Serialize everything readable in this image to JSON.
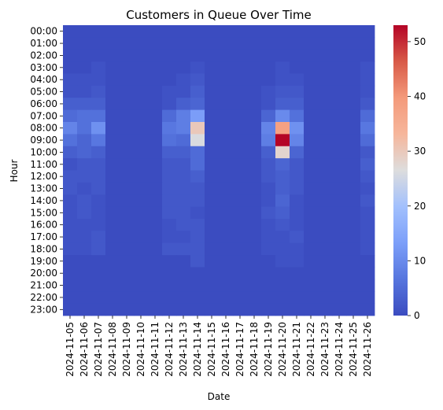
{
  "chart_data": {
    "type": "heatmap",
    "title": "Customers in Queue Over Time",
    "xlabel": "Date",
    "ylabel": "Hour",
    "x_categories": [
      "2024-11-05",
      "2024-11-06",
      "2024-11-07",
      "2024-11-08",
      "2024-11-09",
      "2024-11-10",
      "2024-11-11",
      "2024-11-12",
      "2024-11-13",
      "2024-11-14",
      "2024-11-15",
      "2024-11-16",
      "2024-11-17",
      "2024-11-18",
      "2024-11-19",
      "2024-11-20",
      "2024-11-21",
      "2024-11-22",
      "2024-11-23",
      "2024-11-24",
      "2024-11-25",
      "2024-11-26"
    ],
    "y_categories": [
      "00:00",
      "01:00",
      "02:00",
      "03:00",
      "04:00",
      "05:00",
      "06:00",
      "07:00",
      "08:00",
      "09:00",
      "10:00",
      "11:00",
      "12:00",
      "13:00",
      "14:00",
      "15:00",
      "16:00",
      "17:00",
      "18:00",
      "19:00",
      "20:00",
      "21:00",
      "22:00",
      "23:00"
    ],
    "values": [
      [
        0,
        0,
        0,
        0,
        0,
        0,
        0,
        0,
        0,
        0,
        0,
        0,
        0,
        0,
        0,
        0,
        0,
        0,
        0,
        0,
        0,
        0
      ],
      [
        0,
        0,
        0,
        0,
        0,
        0,
        0,
        0,
        0,
        0,
        0,
        0,
        0,
        0,
        0,
        0,
        0,
        0,
        0,
        0,
        0,
        0
      ],
      [
        0,
        0,
        0,
        0,
        0,
        0,
        0,
        0,
        0,
        0,
        0,
        0,
        0,
        0,
        0,
        0,
        0,
        0,
        0,
        0,
        0,
        0
      ],
      [
        0,
        0,
        1,
        0,
        0,
        0,
        0,
        0,
        0,
        1,
        0,
        0,
        0,
        0,
        0,
        1,
        0,
        0,
        0,
        0,
        0,
        1
      ],
      [
        1,
        1,
        1,
        0,
        0,
        0,
        0,
        0,
        1,
        2,
        0,
        0,
        0,
        0,
        0,
        1,
        1,
        0,
        0,
        0,
        0,
        1
      ],
      [
        1,
        1,
        2,
        0,
        0,
        0,
        0,
        1,
        1,
        3,
        0,
        0,
        0,
        0,
        1,
        2,
        2,
        0,
        0,
        0,
        0,
        1
      ],
      [
        3,
        3,
        3,
        0,
        0,
        0,
        0,
        1,
        3,
        4,
        0,
        0,
        0,
        0,
        1,
        3,
        3,
        0,
        0,
        0,
        0,
        2
      ],
      [
        5,
        6,
        6,
        0,
        0,
        0,
        0,
        5,
        8,
        13,
        0,
        0,
        0,
        0,
        4,
        10,
        6,
        0,
        0,
        0,
        0,
        5
      ],
      [
        9,
        6,
        11,
        0,
        0,
        0,
        0,
        7,
        8,
        30,
        0,
        0,
        0,
        0,
        9,
        38,
        11,
        0,
        0,
        0,
        0,
        7
      ],
      [
        6,
        4,
        7,
        0,
        0,
        0,
        0,
        6,
        5,
        26,
        0,
        0,
        0,
        0,
        8,
        53,
        9,
        0,
        0,
        0,
        0,
        5
      ],
      [
        3,
        4,
        3,
        0,
        0,
        0,
        0,
        3,
        3,
        5,
        0,
        0,
        0,
        0,
        3,
        28,
        4,
        0,
        0,
        0,
        0,
        2
      ],
      [
        1,
        2,
        2,
        0,
        0,
        0,
        0,
        2,
        2,
        5,
        0,
        0,
        0,
        0,
        2,
        4,
        2,
        0,
        0,
        0,
        0,
        3
      ],
      [
        2,
        2,
        2,
        0,
        0,
        0,
        0,
        2,
        2,
        3,
        0,
        0,
        0,
        0,
        2,
        3,
        2,
        0,
        0,
        0,
        0,
        2
      ],
      [
        2,
        1,
        2,
        0,
        0,
        0,
        0,
        2,
        2,
        2,
        0,
        0,
        0,
        0,
        1,
        3,
        2,
        0,
        0,
        0,
        0,
        1
      ],
      [
        1,
        2,
        1,
        0,
        0,
        0,
        0,
        2,
        2,
        2,
        0,
        0,
        0,
        0,
        1,
        4,
        1,
        0,
        0,
        0,
        0,
        2
      ],
      [
        1,
        2,
        1,
        0,
        0,
        0,
        0,
        2,
        2,
        1,
        0,
        0,
        0,
        0,
        2,
        3,
        1,
        0,
        0,
        0,
        0,
        1
      ],
      [
        1,
        1,
        1,
        0,
        0,
        0,
        0,
        1,
        2,
        2,
        0,
        0,
        0,
        0,
        1,
        2,
        1,
        0,
        0,
        0,
        0,
        1
      ],
      [
        1,
        1,
        2,
        0,
        0,
        0,
        0,
        1,
        1,
        2,
        0,
        0,
        0,
        0,
        1,
        1,
        2,
        0,
        0,
        0,
        0,
        1
      ],
      [
        1,
        1,
        2,
        0,
        0,
        0,
        0,
        2,
        2,
        2,
        0,
        0,
        0,
        0,
        1,
        1,
        1,
        0,
        0,
        0,
        0,
        1
      ],
      [
        0,
        0,
        0,
        0,
        0,
        0,
        0,
        0,
        0,
        2,
        0,
        0,
        0,
        0,
        0,
        1,
        1,
        0,
        0,
        0,
        0,
        0
      ],
      [
        0,
        0,
        0,
        0,
        0,
        0,
        0,
        0,
        0,
        0,
        0,
        0,
        0,
        0,
        0,
        0,
        0,
        0,
        0,
        0,
        0,
        0
      ],
      [
        0,
        0,
        0,
        0,
        0,
        0,
        0,
        0,
        0,
        0,
        0,
        0,
        0,
        0,
        0,
        0,
        0,
        0,
        0,
        0,
        0,
        0
      ],
      [
        0,
        0,
        0,
        0,
        0,
        0,
        0,
        0,
        0,
        0,
        0,
        0,
        0,
        0,
        0,
        0,
        0,
        0,
        0,
        0,
        0,
        0
      ],
      [
        0,
        0,
        0,
        0,
        0,
        0,
        0,
        0,
        0,
        0,
        0,
        0,
        0,
        0,
        0,
        0,
        0,
        0,
        0,
        0,
        0,
        0
      ]
    ],
    "colorbar": {
      "colormap": "coolwarm",
      "min": 0,
      "max": 53,
      "ticks": [
        0,
        10,
        20,
        30,
        40,
        50
      ]
    },
    "grid": false,
    "legend": "colorbar-right"
  }
}
